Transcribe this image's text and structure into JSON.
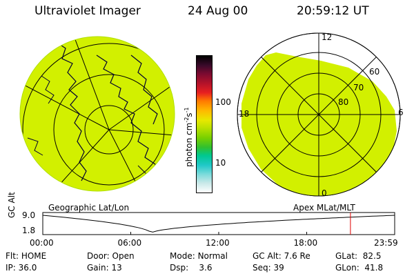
{
  "header": {
    "title": "Ultraviolet Imager",
    "date": "24 Aug 00",
    "time": "20:59:12 UT"
  },
  "colorbar": {
    "unit_label": "photon cm",
    "unit_exp1": "-2",
    "unit_mid": "s",
    "unit_exp2": "-1",
    "tick_100": "100",
    "tick_10": "10",
    "colors": [
      "#000000",
      "#3a0a2a",
      "#7a0a30",
      "#b3122a",
      "#e82020",
      "#ff7a00",
      "#ffb800",
      "#e8e800",
      "#b8e000",
      "#78d000",
      "#30c030",
      "#00c890",
      "#20c8c8",
      "#80dcdc",
      "#c8e8e8",
      "#ffffff"
    ]
  },
  "geo_panel": {
    "caption": "Geographic Lat/Lon",
    "fill_color": "#d2f000"
  },
  "mlt_panel": {
    "caption": "Apex MLat/MLT",
    "labels": {
      "noon": "12",
      "dusk": "18",
      "dawn": "6",
      "midnight": "0",
      "lat60": "60",
      "lat70": "70",
      "lat80": "80"
    }
  },
  "altitude_plot": {
    "ylabel": "GC Alt",
    "y_top": "9.0",
    "y_bottom": "1.8",
    "x_ticks": [
      "00:00",
      "06:00",
      "12:00",
      "18:00",
      "23:59"
    ],
    "marker_time": "20:59",
    "marker_color": "#e00000"
  },
  "status": {
    "flt_label": "Flt:",
    "flt": "HOME",
    "ip_label": "IP:",
    "ip": "36.0",
    "door_label": "Door:",
    "door": "Open",
    "gain_label": "Gain:",
    "gain": "13",
    "mode_label": "Mode:",
    "mode": "Normal",
    "dsp_label": "Dsp:",
    "dsp": "3.6",
    "gcalt_label": "GC Alt:",
    "gcalt": "7.6 Re",
    "seq_label": "Seq:",
    "seq": "39",
    "glat_label": "GLat:",
    "glat": "82.5",
    "glon_label": "GLon:",
    "glon": "41.8"
  }
}
